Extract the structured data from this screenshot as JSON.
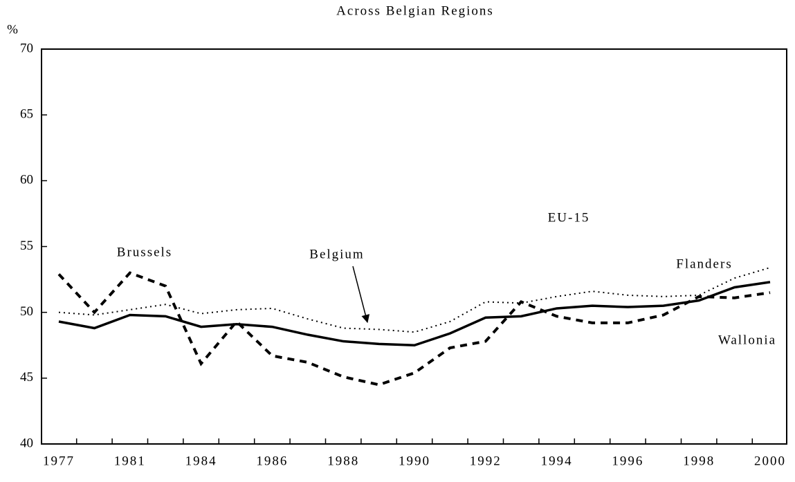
{
  "chart_data": {
    "type": "line",
    "title": "Across Belgian Regions",
    "y_label": "%",
    "categories": [
      "1977",
      null,
      "1981",
      null,
      "1984",
      null,
      "1986",
      null,
      "1988",
      null,
      "1990",
      null,
      "1992",
      null,
      "1994",
      null,
      "1996",
      null,
      "1998",
      null,
      "2000"
    ],
    "series": [
      {
        "name": "Belgium",
        "color": "#000000",
        "values": [
          49.3,
          48.8,
          49.8,
          49.7,
          48.9,
          49.1,
          48.9,
          48.3,
          47.8,
          47.6,
          47.5,
          48.4,
          49.6,
          49.7,
          50.3,
          50.5,
          50.4,
          50.5,
          50.9,
          51.9,
          52.3
        ]
      },
      {
        "name": "Flanders",
        "color": "#000000",
        "values": [
          50.0,
          49.8,
          50.2,
          50.6,
          49.9,
          50.2,
          50.3,
          49.5,
          48.8,
          48.7,
          48.5,
          49.3,
          50.8,
          50.7,
          51.2,
          51.6,
          51.3,
          51.2,
          51.3,
          52.6,
          53.4
        ]
      },
      {
        "name": "Wallonia",
        "color": "#000000",
        "values": [
          52.9,
          50.0,
          53.0,
          52.0,
          46.1,
          49.3,
          46.7,
          46.2,
          45.1,
          44.5,
          45.4,
          47.3,
          47.8,
          50.8,
          49.7,
          49.2,
          49.2,
          49.8,
          51.2,
          51.1,
          51.5
        ]
      }
    ],
    "annotations": [
      "Brussels",
      "EU-15"
    ],
    "ylim": [
      40,
      70
    ],
    "yticks": [
      40,
      45,
      50,
      55,
      60,
      65,
      70
    ],
    "grid": false
  }
}
